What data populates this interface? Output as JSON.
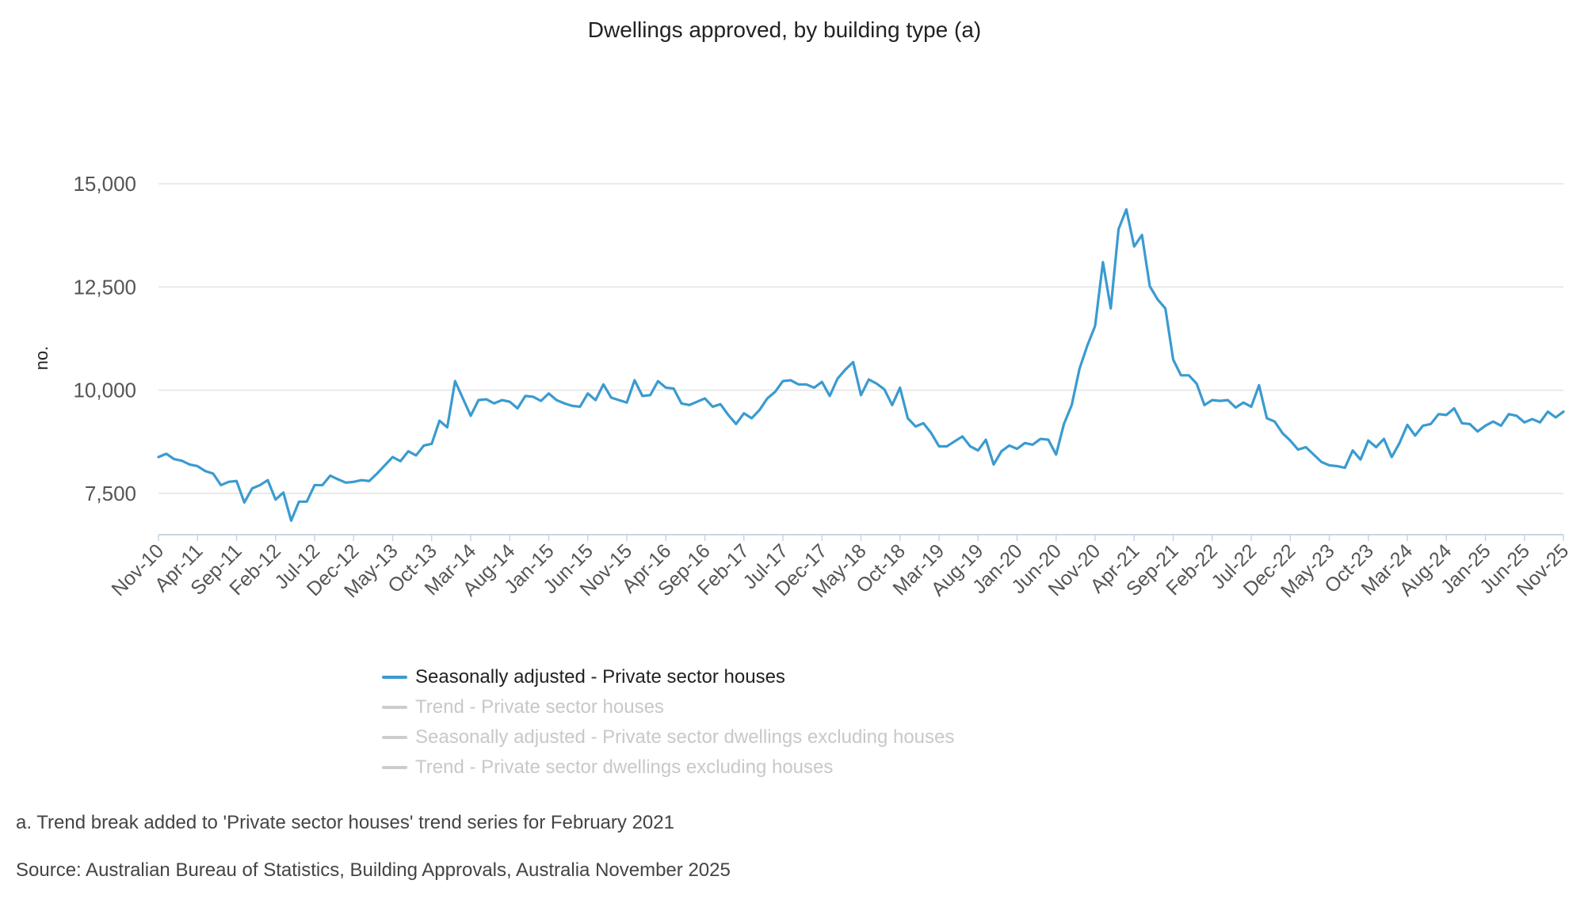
{
  "chart_data": {
    "type": "line",
    "title": "Dwellings approved, by building type (a)",
    "ylabel": "no.",
    "xlabel": "",
    "ylim": [
      6500,
      15000
    ],
    "yticks": [
      7500,
      10000,
      12500,
      15000
    ],
    "ytick_labels": [
      "7,500",
      "10,000",
      "12,500",
      "15,000"
    ],
    "x_start": "Nov-10",
    "x_end": "Nov-25",
    "xtick_labels": [
      "Nov-10",
      "Apr-11",
      "Sep-11",
      "Feb-12",
      "Jul-12",
      "Dec-12",
      "May-13",
      "Oct-13",
      "Mar-14",
      "Aug-14",
      "Jan-15",
      "Jun-15",
      "Nov-15",
      "Apr-16",
      "Sep-16",
      "Feb-17",
      "Jul-17",
      "Dec-17",
      "May-18",
      "Oct-18",
      "Mar-19",
      "Aug-19",
      "Jan-20",
      "Jun-20",
      "Nov-20",
      "Apr-21",
      "Sep-21",
      "Feb-22",
      "Jul-22",
      "Dec-22",
      "May-23",
      "Oct-23",
      "Mar-24",
      "Aug-24",
      "Jan-25",
      "Jun-25",
      "Nov-25"
    ],
    "grid": true,
    "legend_position": "bottom",
    "series": [
      {
        "name": "Seasonally adjusted - Private sector houses",
        "color": "#3a9bd0",
        "visible": true,
        "values": [
          8380,
          8460,
          8330,
          8290,
          8200,
          8160,
          8040,
          7980,
          7700,
          7780,
          7800,
          7280,
          7620,
          7700,
          7820,
          7350,
          7520,
          6840,
          7300,
          7300,
          7700,
          7700,
          7930,
          7840,
          7760,
          7780,
          7820,
          7800,
          7980,
          8180,
          8380,
          8280,
          8520,
          8420,
          8660,
          8700,
          9260,
          9100,
          10220,
          9800,
          9380,
          9760,
          9780,
          9680,
          9760,
          9720,
          9560,
          9860,
          9840,
          9740,
          9920,
          9760,
          9680,
          9620,
          9600,
          9920,
          9760,
          10140,
          9820,
          9760,
          9700,
          10240,
          9860,
          9880,
          10220,
          10060,
          10040,
          9680,
          9640,
          9720,
          9800,
          9600,
          9660,
          9400,
          9180,
          9440,
          9320,
          9520,
          9800,
          9960,
          10220,
          10240,
          10140,
          10140,
          10060,
          10200,
          9860,
          10280,
          10500,
          10680,
          9880,
          10260,
          10160,
          10020,
          9640,
          10060,
          9320,
          9120,
          9200,
          8960,
          8640,
          8640,
          8760,
          8880,
          8640,
          8540,
          8800,
          8200,
          8520,
          8660,
          8580,
          8720,
          8680,
          8820,
          8800,
          8440,
          9180,
          9640,
          10520,
          11080,
          11560,
          13100,
          11980,
          13900,
          14380,
          13480,
          13760,
          12520,
          12200,
          11980,
          10740,
          10360,
          10360,
          10160,
          9640,
          9760,
          9740,
          9760,
          9580,
          9700,
          9600,
          10120,
          9320,
          9240,
          8960,
          8780,
          8560,
          8620,
          8440,
          8260,
          8180,
          8160,
          8120,
          8540,
          8320,
          8780,
          8620,
          8820,
          8380,
          8720,
          9160,
          8900,
          9140,
          9180,
          9420,
          9400,
          9560,
          9200,
          9180,
          9000,
          9140,
          9240,
          9140,
          9420,
          9380,
          9220,
          9300,
          9220,
          9480,
          9340,
          9480
        ]
      },
      {
        "name": "Trend - Private sector houses",
        "color": "#cccccc",
        "visible": false
      },
      {
        "name": "Seasonally adjusted - Private sector dwellings excluding houses",
        "color": "#cccccc",
        "visible": false
      },
      {
        "name": "Trend - Private sector dwellings excluding houses",
        "color": "#cccccc",
        "visible": false
      }
    ]
  },
  "legend": [
    {
      "label": "Seasonally adjusted - Private sector houses",
      "color": "#3a9bd0",
      "active": true
    },
    {
      "label": "Trend - Private sector houses",
      "color": "#cccccc",
      "active": false
    },
    {
      "label": "Seasonally adjusted - Private sector dwellings excluding houses",
      "color": "#cccccc",
      "active": false
    },
    {
      "label": "Trend - Private sector dwellings excluding houses",
      "color": "#cccccc",
      "active": false
    }
  ],
  "notes": {
    "footnote": "a. Trend break added to 'Private sector houses' trend series for February 2021",
    "source": "Source: Australian Bureau of Statistics, Building Approvals, Australia November 2025"
  }
}
